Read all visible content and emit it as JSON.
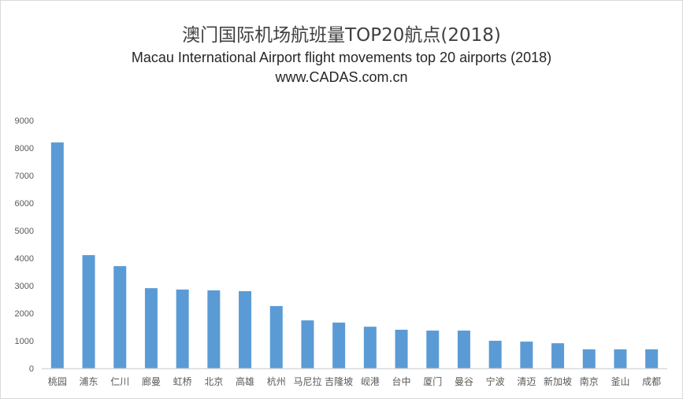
{
  "chart_data": {
    "type": "bar",
    "title": "澳门国际机场航班量TOP20航点(2018)",
    "subtitle": "Macau International Airport  flight movements top 20 airports (2018)",
    "source": "www.CADAS.com.cn",
    "xlabel": "",
    "ylabel": "",
    "ylim": [
      0,
      9000
    ],
    "yticks": [
      0,
      1000,
      2000,
      3000,
      4000,
      5000,
      6000,
      7000,
      8000,
      9000
    ],
    "grid": false,
    "legend": "none",
    "bar_color": "#5b9bd5",
    "categories": [
      "桃园",
      "浦东",
      "仁川",
      "廊曼",
      "虹桥",
      "北京",
      "高雄",
      "杭州",
      "马尼拉",
      "吉隆坡",
      "岘港",
      "台中",
      "厦门",
      "曼谷",
      "宁波",
      "清迈",
      "新加坡",
      "南京",
      "釜山",
      "成都"
    ],
    "values": [
      8200,
      4110,
      3710,
      2910,
      2860,
      2830,
      2800,
      2260,
      1740,
      1660,
      1510,
      1400,
      1370,
      1370,
      1000,
      970,
      910,
      690,
      690,
      690
    ]
  }
}
